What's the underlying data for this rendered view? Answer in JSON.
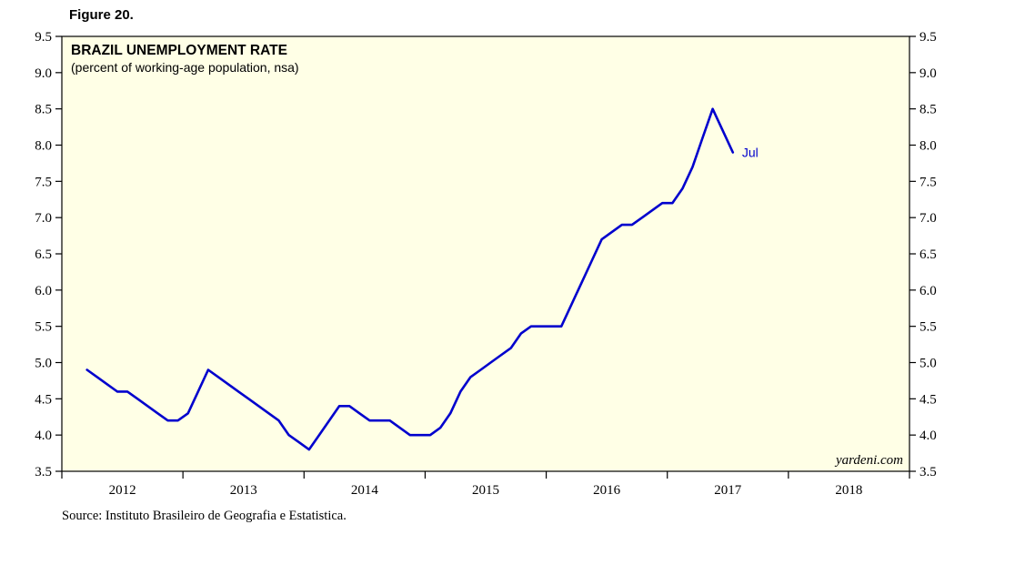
{
  "figure_label": "Figure 20.",
  "source": "Source: Instituto Brasileiro de Geografia e Estatistica.",
  "watermark": "yardeni.com",
  "chart_data": {
    "type": "line",
    "title": "BRAZIL UNEMPLOYMENT RATE",
    "subtitle": "(percent of working-age population, nsa)",
    "end_label": "Jul",
    "line_color": "#0000cd",
    "background_color": "#ffffe6",
    "border_color": "#000000",
    "ylim": [
      3.5,
      9.5
    ],
    "ytick_step": 0.5,
    "ytick_labels_both_sides": true,
    "xlim": [
      2012,
      2019
    ],
    "xtick_years": [
      2012,
      2013,
      2014,
      2015,
      2016,
      2017,
      2018
    ],
    "grid": "off",
    "legend": "none",
    "series": [
      {
        "name": "Brazil unemployment rate (percent of working-age population, nsa)",
        "points": [
          [
            "2012-03",
            4.9
          ],
          [
            "2012-04",
            4.8
          ],
          [
            "2012-05",
            4.7
          ],
          [
            "2012-06",
            4.6
          ],
          [
            "2012-07",
            4.6
          ],
          [
            "2012-08",
            4.5
          ],
          [
            "2012-09",
            4.4
          ],
          [
            "2012-10",
            4.3
          ],
          [
            "2012-11",
            4.2
          ],
          [
            "2012-12",
            4.2
          ],
          [
            "2013-01",
            4.3
          ],
          [
            "2013-02",
            4.6
          ],
          [
            "2013-03",
            4.9
          ],
          [
            "2013-04",
            4.8
          ],
          [
            "2013-05",
            4.7
          ],
          [
            "2013-06",
            4.6
          ],
          [
            "2013-07",
            4.5
          ],
          [
            "2013-08",
            4.4
          ],
          [
            "2013-09",
            4.3
          ],
          [
            "2013-10",
            4.2
          ],
          [
            "2013-11",
            4.0
          ],
          [
            "2013-12",
            3.9
          ],
          [
            "2014-01",
            3.8
          ],
          [
            "2014-02",
            4.0
          ],
          [
            "2014-03",
            4.2
          ],
          [
            "2014-04",
            4.4
          ],
          [
            "2014-05",
            4.4
          ],
          [
            "2014-06",
            4.3
          ],
          [
            "2014-07",
            4.2
          ],
          [
            "2014-08",
            4.2
          ],
          [
            "2014-09",
            4.2
          ],
          [
            "2014-10",
            4.1
          ],
          [
            "2014-11",
            4.0
          ],
          [
            "2014-12",
            4.0
          ],
          [
            "2015-01",
            4.0
          ],
          [
            "2015-02",
            4.1
          ],
          [
            "2015-03",
            4.3
          ],
          [
            "2015-04",
            4.6
          ],
          [
            "2015-05",
            4.8
          ],
          [
            "2015-06",
            4.9
          ],
          [
            "2015-07",
            5.0
          ],
          [
            "2015-08",
            5.1
          ],
          [
            "2015-09",
            5.2
          ],
          [
            "2015-10",
            5.4
          ],
          [
            "2015-11",
            5.5
          ],
          [
            "2015-12",
            5.5
          ],
          [
            "2016-01",
            5.5
          ],
          [
            "2016-02",
            5.5
          ],
          [
            "2016-03",
            5.8
          ],
          [
            "2016-04",
            6.1
          ],
          [
            "2016-05",
            6.4
          ],
          [
            "2016-06",
            6.7
          ],
          [
            "2016-07",
            6.8
          ],
          [
            "2016-08",
            6.9
          ],
          [
            "2016-09",
            6.9
          ],
          [
            "2016-10",
            7.0
          ],
          [
            "2016-11",
            7.1
          ],
          [
            "2016-12",
            7.2
          ],
          [
            "2017-01",
            7.2
          ],
          [
            "2017-02",
            7.4
          ],
          [
            "2017-03",
            7.7
          ],
          [
            "2017-04",
            8.1
          ],
          [
            "2017-05",
            8.5
          ],
          [
            "2017-06",
            8.2
          ],
          [
            "2017-07",
            7.9
          ]
        ]
      }
    ]
  }
}
